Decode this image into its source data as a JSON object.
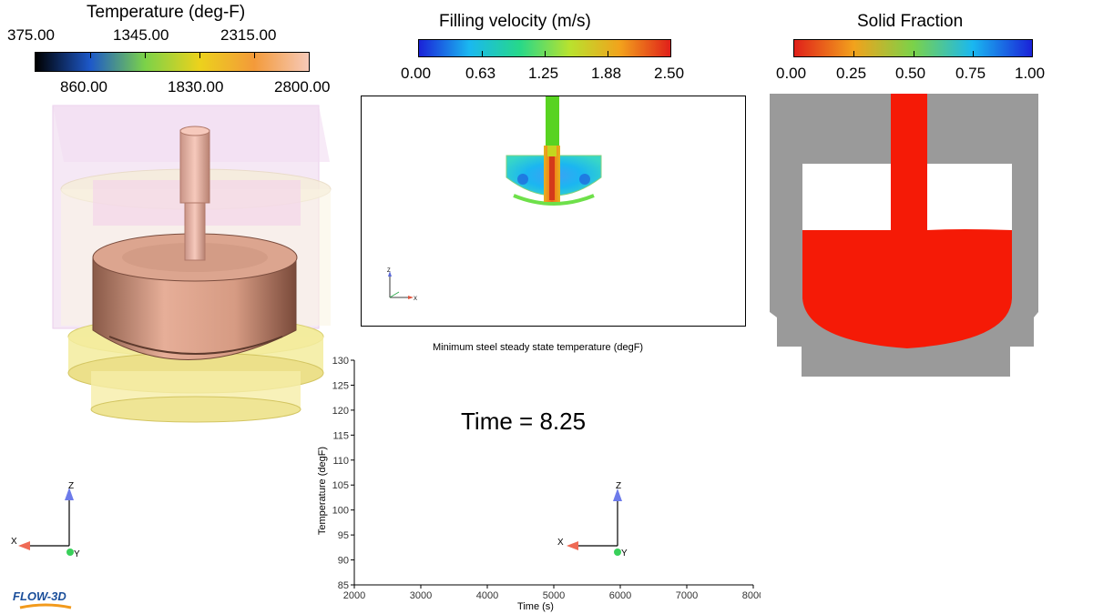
{
  "temperature_legend": {
    "title": "Temperature (deg-F)",
    "top_ticks": [
      "375.00",
      "1345.00",
      "2315.00"
    ],
    "bottom_ticks": [
      "860.00",
      "1830.00",
      "2800.00"
    ],
    "colors": [
      "#000000",
      "#1d58c9",
      "#7bd249",
      "#ecd21c",
      "#f39a3a",
      "#f6c9b8"
    ]
  },
  "velocity_legend": {
    "title": "Filling velocity (m/s)",
    "ticks": [
      "0.00",
      "0.63",
      "1.25",
      "1.88",
      "2.50"
    ],
    "colors": [
      "#1a22d8",
      "#1ab8f0",
      "#26d88a",
      "#b9e22e",
      "#f2a21c",
      "#e0201a"
    ]
  },
  "solid_legend": {
    "title": "Solid Fraction",
    "ticks": [
      "0.00",
      "0.25",
      "0.50",
      "0.75",
      "1.00"
    ],
    "colors": [
      "#e0201a",
      "#f2a21c",
      "#7bd249",
      "#1ab8f0",
      "#1a22d8"
    ]
  },
  "time_label": "Time = 8.25",
  "chart_data": {
    "type": "line",
    "title": "Minimum steel steady state temperature (degF)",
    "xlabel": "Time (s)",
    "ylabel": "Temperature (degF)",
    "xlim": [
      2000,
      8000
    ],
    "ylim": [
      85,
      130
    ],
    "xticks": [
      2000,
      3000,
      4000,
      5000,
      6000,
      7000,
      8000
    ],
    "yticks": [
      85,
      90,
      95,
      100,
      105,
      110,
      115,
      120,
      125,
      130
    ],
    "series": []
  },
  "triads": {
    "x": "X",
    "y": "Y",
    "z": "Z"
  },
  "logo": "FLOW-3D"
}
